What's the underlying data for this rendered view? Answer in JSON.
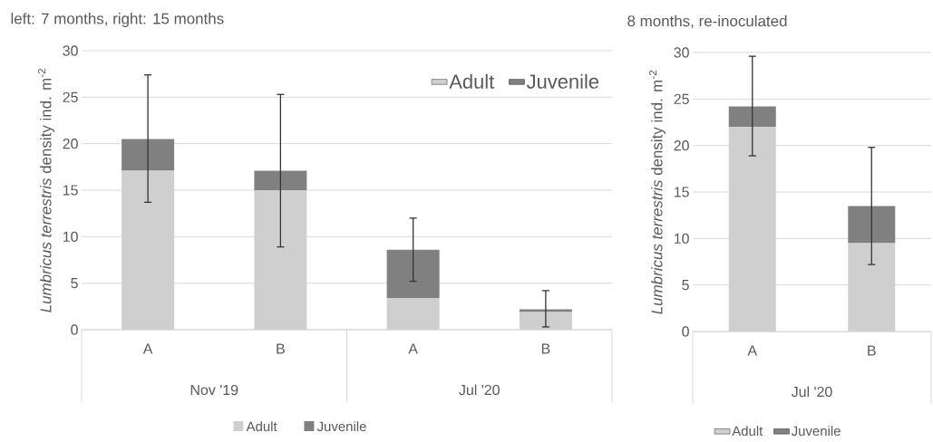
{
  "chart_data": [
    {
      "type": "bar",
      "stacked": true,
      "title": "left: 7 months, right: 15 months",
      "ylabel": "*Lumbricus terrestris* density ind. m$^{-2}$",
      "categories": [
        "A",
        "B",
        "A",
        "B"
      ],
      "annotations": [
        "Nov '19",
        "Jul '20"
      ],
      "series": [
        {
          "name": "Adult",
          "color": "#d0cfd0",
          "values": [
            17.1,
            15,
            3.4,
            1.9
          ]
        },
        {
          "name": "Juvenile",
          "color": "#808080",
          "values": [
            3.4,
            2.1,
            5.2,
            0.3
          ],
          "errors": [
            [
              13.7,
              27.4
            ],
            [
              8.9,
              25.3
            ],
            [
              5.2,
              12.0
            ],
            [
              0.3,
              4.2
            ]
          ]
        }
      ],
      "ylim": [
        0,
        30
      ],
      "yticks": [
        0,
        5,
        10,
        15,
        20,
        25,
        30
      ],
      "grid": "y",
      "legend": "top right"
    },
    {
      "type": "bar",
      "stacked": true,
      "title": "8 months, re-inoculated",
      "ylabel": "*Lumbricus terrestris* density ind. m$^{-2}$",
      "categories": [
        "A",
        "B"
      ],
      "annotations": [
        "Jul '20"
      ],
      "series": [
        {
          "name": "Adult",
          "color": "#d0cfd0",
          "values": [
            22,
            9.5
          ]
        },
        {
          "name": "Juvenile",
          "color": "#808080",
          "values": [
            2.2,
            4.0
          ],
          "errors": [
            [
              18.9,
              29.6
            ],
            [
              7.2,
              19.8
            ]
          ]
        }
      ],
      "ylim": [
        0,
        30
      ],
      "yticks": [
        0,
        5,
        10,
        15,
        20,
        25,
        30
      ],
      "grid": "y",
      "legend": "bottom"
    }
  ]
}
